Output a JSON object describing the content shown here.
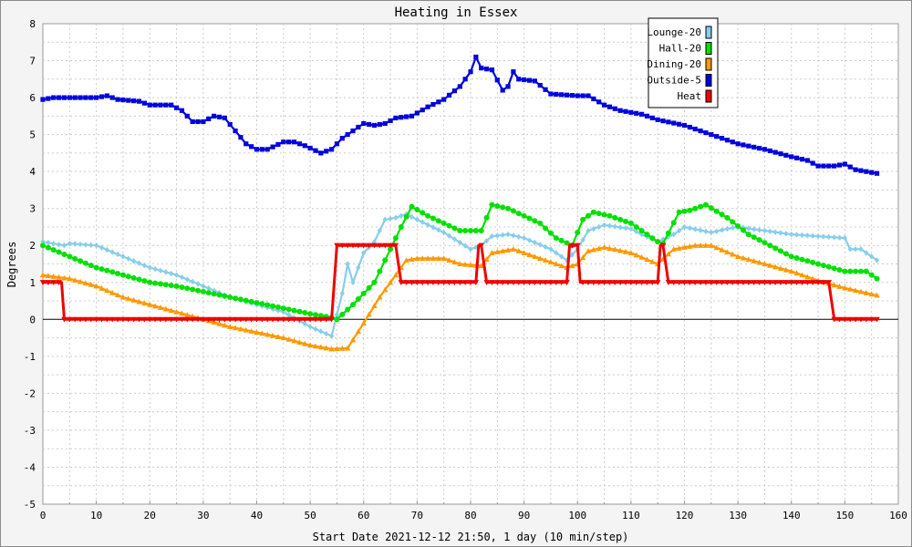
{
  "chart_data": {
    "type": "line",
    "title": "Heating in Essex",
    "xlabel": "Start Date 2021-12-12 21:50, 1 day (10 min/step)",
    "ylabel": "Degrees",
    "xlim": [
      0,
      160
    ],
    "ylim": [
      -5,
      8
    ],
    "xticks": [
      "0",
      "10",
      "20",
      "30",
      "40",
      "50",
      "60",
      "70",
      "80",
      "90",
      "100",
      "110",
      "120",
      "130",
      "140",
      "150",
      "160"
    ],
    "yticks": [
      "-5",
      "-4",
      "-3",
      "-2",
      "-1",
      "0",
      "1",
      "2",
      "3",
      "4",
      "5",
      "6",
      "7",
      "8"
    ],
    "grid": true,
    "legend_position": "top-right",
    "series": [
      {
        "name": "Lounge-20",
        "color": "#87ceeb",
        "marker": "diamond",
        "points": [
          [
            0,
            2.1
          ],
          [
            4,
            2.0
          ],
          [
            5,
            2.05
          ],
          [
            10,
            2.0
          ],
          [
            15,
            1.7
          ],
          [
            20,
            1.4
          ],
          [
            25,
            1.2
          ],
          [
            30,
            0.9
          ],
          [
            35,
            0.6
          ],
          [
            40,
            0.4
          ],
          [
            45,
            0.2
          ],
          [
            50,
            -0.2
          ],
          [
            54,
            -0.45
          ],
          [
            56,
            0.7
          ],
          [
            57,
            1.5
          ],
          [
            58,
            1.0
          ],
          [
            60,
            1.8
          ],
          [
            62,
            2.1
          ],
          [
            64,
            2.7
          ],
          [
            66,
            2.75
          ],
          [
            68,
            2.85
          ],
          [
            70,
            2.7
          ],
          [
            75,
            2.35
          ],
          [
            80,
            1.9
          ],
          [
            82,
            2.0
          ],
          [
            84,
            2.25
          ],
          [
            87,
            2.3
          ],
          [
            90,
            2.2
          ],
          [
            95,
            1.9
          ],
          [
            98,
            1.6
          ],
          [
            100,
            1.9
          ],
          [
            102,
            2.4
          ],
          [
            105,
            2.55
          ],
          [
            110,
            2.45
          ],
          [
            112,
            2.3
          ],
          [
            115,
            2.1
          ],
          [
            118,
            2.3
          ],
          [
            120,
            2.5
          ],
          [
            125,
            2.35
          ],
          [
            128,
            2.45
          ],
          [
            130,
            2.5
          ],
          [
            135,
            2.4
          ],
          [
            140,
            2.3
          ],
          [
            145,
            2.25
          ],
          [
            150,
            2.2
          ],
          [
            151,
            1.9
          ],
          [
            153,
            1.9
          ],
          [
            156,
            1.6
          ]
        ]
      },
      {
        "name": "Hall-20",
        "color": "#00e000",
        "marker": "circle",
        "points": [
          [
            0,
            2.0
          ],
          [
            5,
            1.7
          ],
          [
            10,
            1.4
          ],
          [
            15,
            1.2
          ],
          [
            20,
            1.0
          ],
          [
            25,
            0.9
          ],
          [
            30,
            0.75
          ],
          [
            35,
            0.6
          ],
          [
            40,
            0.45
          ],
          [
            45,
            0.3
          ],
          [
            50,
            0.15
          ],
          [
            54,
            0.05
          ],
          [
            55,
            0.0
          ],
          [
            58,
            0.4
          ],
          [
            62,
            1.0
          ],
          [
            65,
            1.9
          ],
          [
            67,
            2.5
          ],
          [
            69,
            3.05
          ],
          [
            72,
            2.8
          ],
          [
            75,
            2.6
          ],
          [
            78,
            2.4
          ],
          [
            82,
            2.4
          ],
          [
            84,
            3.1
          ],
          [
            87,
            3.0
          ],
          [
            90,
            2.8
          ],
          [
            93,
            2.6
          ],
          [
            96,
            2.2
          ],
          [
            99,
            2.0
          ],
          [
            101,
            2.7
          ],
          [
            103,
            2.9
          ],
          [
            106,
            2.8
          ],
          [
            110,
            2.6
          ],
          [
            115,
            2.1
          ],
          [
            116,
            2.05
          ],
          [
            119,
            2.9
          ],
          [
            121,
            2.95
          ],
          [
            124,
            3.1
          ],
          [
            128,
            2.75
          ],
          [
            132,
            2.3
          ],
          [
            136,
            2.0
          ],
          [
            140,
            1.7
          ],
          [
            145,
            1.5
          ],
          [
            150,
            1.3
          ],
          [
            154,
            1.3
          ],
          [
            156,
            1.1
          ]
        ]
      },
      {
        "name": "Dining-20",
        "color": "#ff9900",
        "marker": "triangle",
        "points": [
          [
            0,
            1.2
          ],
          [
            5,
            1.1
          ],
          [
            10,
            0.9
          ],
          [
            15,
            0.6
          ],
          [
            20,
            0.4
          ],
          [
            25,
            0.2
          ],
          [
            30,
            0.0
          ],
          [
            35,
            -0.2
          ],
          [
            40,
            -0.35
          ],
          [
            45,
            -0.5
          ],
          [
            50,
            -0.7
          ],
          [
            54,
            -0.8
          ],
          [
            57,
            -0.78
          ],
          [
            60,
            -0.1
          ],
          [
            63,
            0.6
          ],
          [
            66,
            1.2
          ],
          [
            68,
            1.6
          ],
          [
            70,
            1.65
          ],
          [
            75,
            1.65
          ],
          [
            78,
            1.5
          ],
          [
            82,
            1.45
          ],
          [
            84,
            1.8
          ],
          [
            88,
            1.9
          ],
          [
            92,
            1.7
          ],
          [
            96,
            1.5
          ],
          [
            98,
            1.4
          ],
          [
            100,
            1.5
          ],
          [
            102,
            1.85
          ],
          [
            105,
            1.95
          ],
          [
            110,
            1.8
          ],
          [
            115,
            1.5
          ],
          [
            118,
            1.9
          ],
          [
            122,
            2.0
          ],
          [
            125,
            2.0
          ],
          [
            130,
            1.7
          ],
          [
            135,
            1.5
          ],
          [
            140,
            1.3
          ],
          [
            145,
            1.05
          ],
          [
            150,
            0.85
          ],
          [
            156,
            0.65
          ]
        ]
      },
      {
        "name": "Outside-5",
        "color": "#0000dd",
        "marker": "square",
        "points": [
          [
            0,
            5.95
          ],
          [
            2,
            6.0
          ],
          [
            10,
            6.0
          ],
          [
            12,
            6.05
          ],
          [
            14,
            5.95
          ],
          [
            18,
            5.9
          ],
          [
            20,
            5.8
          ],
          [
            24,
            5.8
          ],
          [
            26,
            5.65
          ],
          [
            28,
            5.35
          ],
          [
            30,
            5.35
          ],
          [
            32,
            5.5
          ],
          [
            34,
            5.45
          ],
          [
            36,
            5.1
          ],
          [
            38,
            4.75
          ],
          [
            40,
            4.6
          ],
          [
            42,
            4.6
          ],
          [
            45,
            4.8
          ],
          [
            47,
            4.8
          ],
          [
            49,
            4.7
          ],
          [
            52,
            4.5
          ],
          [
            54,
            4.6
          ],
          [
            56,
            4.9
          ],
          [
            58,
            5.1
          ],
          [
            60,
            5.3
          ],
          [
            62,
            5.25
          ],
          [
            64,
            5.3
          ],
          [
            66,
            5.45
          ],
          [
            69,
            5.5
          ],
          [
            72,
            5.75
          ],
          [
            75,
            5.95
          ],
          [
            78,
            6.3
          ],
          [
            80,
            6.7
          ],
          [
            81,
            7.1
          ],
          [
            82,
            6.8
          ],
          [
            84,
            6.75
          ],
          [
            86,
            6.2
          ],
          [
            87,
            6.3
          ],
          [
            88,
            6.7
          ],
          [
            89,
            6.5
          ],
          [
            92,
            6.45
          ],
          [
            95,
            6.1
          ],
          [
            100,
            6.05
          ],
          [
            102,
            6.05
          ],
          [
            105,
            5.8
          ],
          [
            108,
            5.65
          ],
          [
            112,
            5.55
          ],
          [
            115,
            5.4
          ],
          [
            120,
            5.25
          ],
          [
            125,
            5.0
          ],
          [
            130,
            4.75
          ],
          [
            135,
            4.6
          ],
          [
            140,
            4.4
          ],
          [
            143,
            4.3
          ],
          [
            145,
            4.15
          ],
          [
            148,
            4.15
          ],
          [
            150,
            4.2
          ],
          [
            152,
            4.05
          ],
          [
            156,
            3.95
          ]
        ]
      },
      {
        "name": "Heat",
        "color": "#ee0000",
        "marker": "down-triangle",
        "points": [
          [
            0,
            1
          ],
          [
            3.5,
            1
          ],
          [
            4,
            0
          ],
          [
            54,
            0
          ],
          [
            55,
            2
          ],
          [
            66,
            2
          ],
          [
            67,
            1
          ],
          [
            81,
            1
          ],
          [
            81.5,
            2
          ],
          [
            82,
            2
          ],
          [
            83,
            1
          ],
          [
            98,
            1
          ],
          [
            98.5,
            2
          ],
          [
            100,
            2
          ],
          [
            100.5,
            1
          ],
          [
            115,
            1
          ],
          [
            115.5,
            2
          ],
          [
            116,
            2
          ],
          [
            117,
            1
          ],
          [
            147,
            1
          ],
          [
            148,
            0
          ],
          [
            156,
            0
          ]
        ]
      }
    ]
  }
}
